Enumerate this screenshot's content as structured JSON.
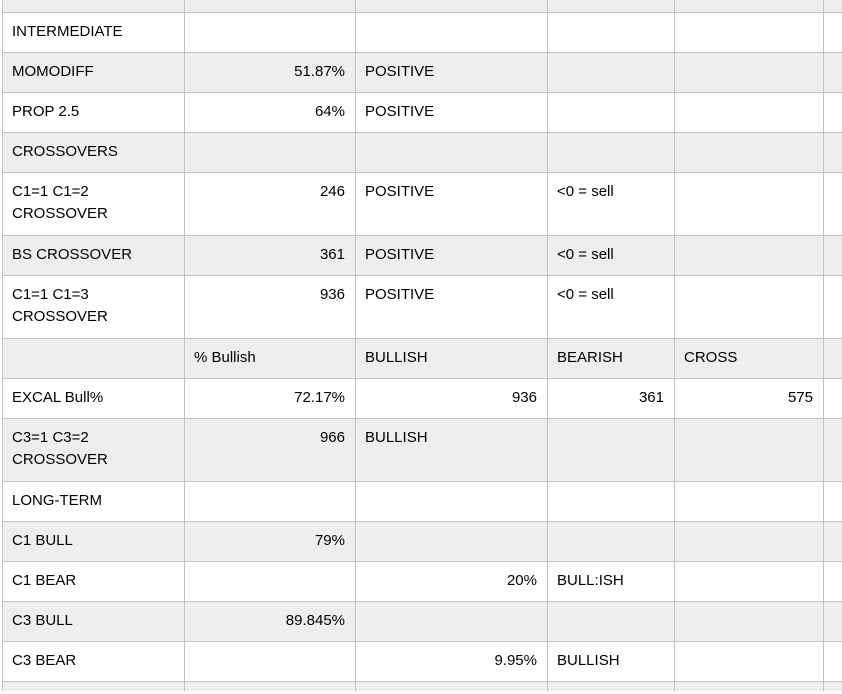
{
  "app": {
    "description": "Spreadsheet of market breadth / crossover signals",
    "colors": {
      "row_bg": "#ffffff",
      "alt_row_bg": "#eeeeee",
      "grid_line": "#c3c3c3",
      "text": "#000000"
    }
  },
  "table": {
    "rows": [
      {
        "kind": "spacer-top",
        "bg": "gray",
        "cells": [
          {
            "t": ""
          },
          {
            "t": ""
          },
          {
            "t": ""
          },
          {
            "t": ""
          },
          {
            "t": ""
          },
          {
            "t": ""
          }
        ]
      },
      {
        "kind": "data",
        "bg": "white",
        "cells": [
          {
            "t": "INTERMEDIATE"
          },
          {
            "t": ""
          },
          {
            "t": ""
          },
          {
            "t": ""
          },
          {
            "t": ""
          },
          {
            "t": ""
          }
        ]
      },
      {
        "kind": "data",
        "bg": "gray",
        "cells": [
          {
            "t": "MOMODIFF"
          },
          {
            "t": "51.87%",
            "a": "r"
          },
          {
            "t": "POSITIVE"
          },
          {
            "t": ""
          },
          {
            "t": ""
          },
          {
            "t": ""
          }
        ]
      },
      {
        "kind": "data",
        "bg": "white",
        "cells": [
          {
            "t": "PROP 2.5"
          },
          {
            "t": "64%",
            "a": "r"
          },
          {
            "t": "POSITIVE"
          },
          {
            "t": ""
          },
          {
            "t": ""
          },
          {
            "t": ""
          }
        ]
      },
      {
        "kind": "data",
        "bg": "gray",
        "cells": [
          {
            "t": "CROSSOVERS"
          },
          {
            "t": ""
          },
          {
            "t": ""
          },
          {
            "t": ""
          },
          {
            "t": ""
          },
          {
            "t": ""
          }
        ]
      },
      {
        "kind": "data",
        "bg": "white",
        "cells": [
          {
            "t": "C1=1 C1=2\nCROSSOVER"
          },
          {
            "t": "246",
            "a": "r"
          },
          {
            "t": "POSITIVE"
          },
          {
            "t": "<0 = sell"
          },
          {
            "t": ""
          },
          {
            "t": ""
          }
        ]
      },
      {
        "kind": "data",
        "bg": "gray",
        "cells": [
          {
            "t": "BS CROSSOVER"
          },
          {
            "t": "361",
            "a": "r"
          },
          {
            "t": "POSITIVE"
          },
          {
            "t": "<0 = sell"
          },
          {
            "t": ""
          },
          {
            "t": ""
          }
        ]
      },
      {
        "kind": "data",
        "bg": "white",
        "cells": [
          {
            "t": "C1=1 C1=3\nCROSSOVER"
          },
          {
            "t": "936",
            "a": "r"
          },
          {
            "t": "POSITIVE"
          },
          {
            "t": "<0 = sell"
          },
          {
            "t": ""
          },
          {
            "t": ""
          }
        ]
      },
      {
        "kind": "data",
        "bg": "gray",
        "cells": [
          {
            "t": ""
          },
          {
            "t": "% Bullish"
          },
          {
            "t": "BULLISH"
          },
          {
            "t": "BEARISH"
          },
          {
            "t": "CROSS"
          },
          {
            "t": ""
          }
        ]
      },
      {
        "kind": "data",
        "bg": "white",
        "cells": [
          {
            "t": "EXCAL Bull%"
          },
          {
            "t": "72.17%",
            "a": "r"
          },
          {
            "t": "936",
            "a": "r"
          },
          {
            "t": "361",
            "a": "r"
          },
          {
            "t": "575",
            "a": "r"
          },
          {
            "t": ""
          }
        ]
      },
      {
        "kind": "data",
        "bg": "gray",
        "cells": [
          {
            "t": "C3=1 C3=2\nCROSSOVER"
          },
          {
            "t": "966",
            "a": "r"
          },
          {
            "t": "BULLISH"
          },
          {
            "t": ""
          },
          {
            "t": ""
          },
          {
            "t": ""
          }
        ]
      },
      {
        "kind": "data",
        "bg": "white",
        "cells": [
          {
            "t": "LONG-TERM"
          },
          {
            "t": ""
          },
          {
            "t": ""
          },
          {
            "t": ""
          },
          {
            "t": ""
          },
          {
            "t": ""
          }
        ]
      },
      {
        "kind": "data",
        "bg": "gray",
        "cells": [
          {
            "t": "C1 BULL"
          },
          {
            "t": "79%",
            "a": "r"
          },
          {
            "t": ""
          },
          {
            "t": ""
          },
          {
            "t": ""
          },
          {
            "t": ""
          }
        ]
      },
      {
        "kind": "data",
        "bg": "white",
        "cells": [
          {
            "t": "C1 BEAR"
          },
          {
            "t": ""
          },
          {
            "t": "20%",
            "a": "r"
          },
          {
            "t": "BULL:ISH"
          },
          {
            "t": ""
          },
          {
            "t": ""
          }
        ]
      },
      {
        "kind": "data",
        "bg": "gray",
        "cells": [
          {
            "t": "C3 BULL"
          },
          {
            "t": "89.845%",
            "a": "r"
          },
          {
            "t": ""
          },
          {
            "t": ""
          },
          {
            "t": ""
          },
          {
            "t": ""
          }
        ]
      },
      {
        "kind": "data",
        "bg": "white",
        "cells": [
          {
            "t": "C3 BEAR"
          },
          {
            "t": ""
          },
          {
            "t": "9.95%",
            "a": "r"
          },
          {
            "t": "BULLISH"
          },
          {
            "t": ""
          },
          {
            "t": ""
          }
        ]
      },
      {
        "kind": "spacer-bottom",
        "bg": "gray",
        "cells": [
          {
            "t": ""
          },
          {
            "t": ""
          },
          {
            "t": ""
          },
          {
            "t": ""
          },
          {
            "t": ""
          },
          {
            "t": ""
          }
        ]
      }
    ]
  }
}
